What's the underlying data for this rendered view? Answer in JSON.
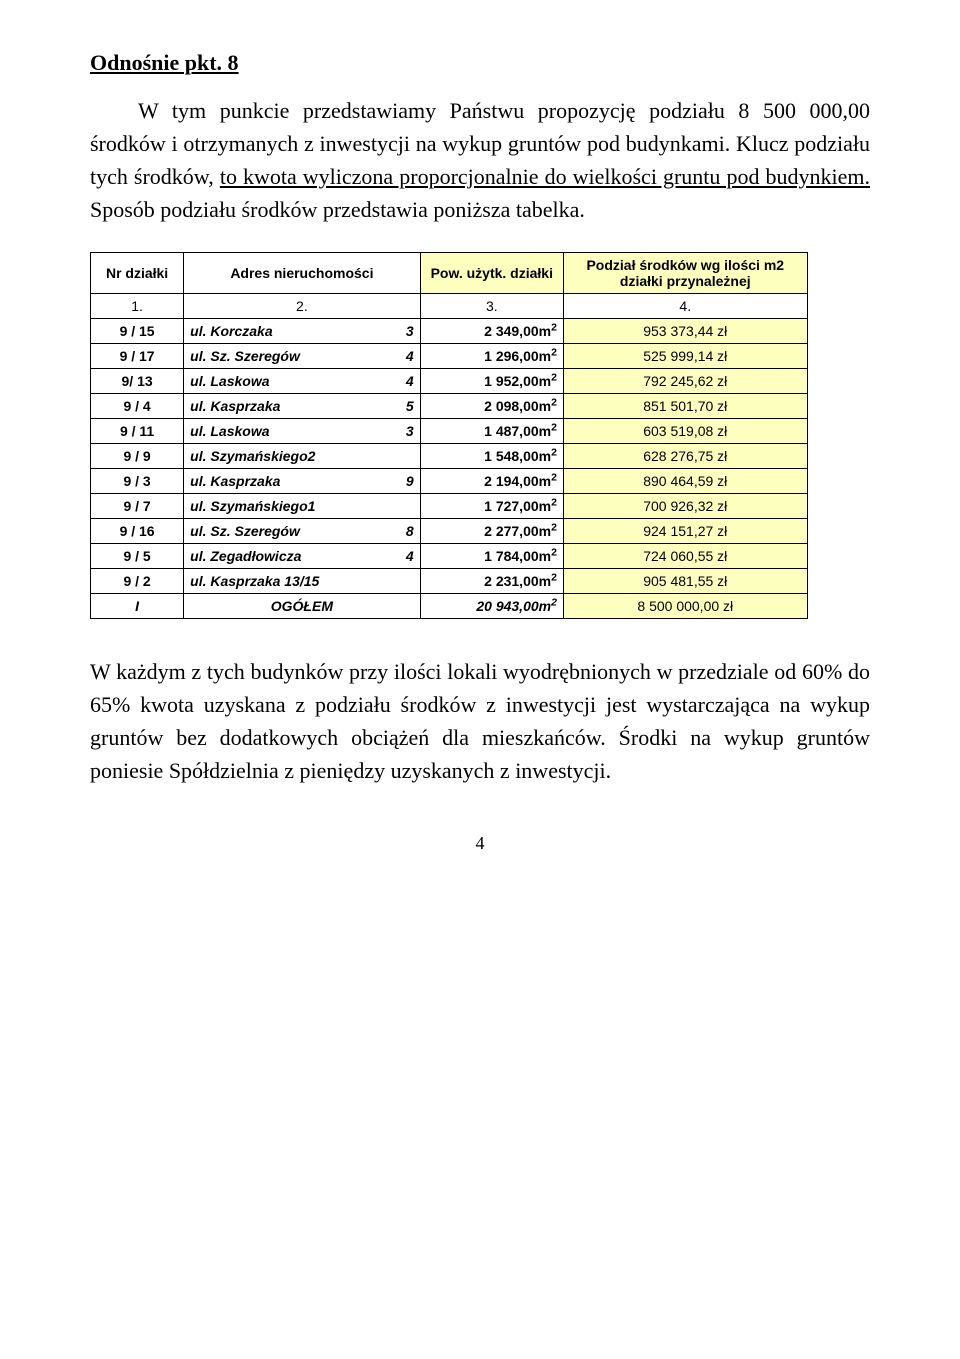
{
  "heading": "Odnośnie pkt. 8",
  "para1_pre": "W tym punkcie przedstawiamy Państwu propozycję podziału 8 500 000,00 środków i otrzymanych z inwestycji na wykup gruntów pod budynkami. Klucz podziału tych środków, ",
  "para1_u": "to kwota wyliczona proporcjonalnie do wielkości gruntu pod budynkiem.",
  "para1_post": " Sposób podziału środków przedstawia poniższa tabelka.",
  "table": {
    "headers": {
      "c1": "Nr działki",
      "c2": "Adres  nieruchomości",
      "c3": "Pow. użytk. działki",
      "c4": "Podział środków wg ilości m2 działki przynależnej"
    },
    "numrow": [
      "1.",
      "2.",
      "3.",
      "4."
    ],
    "rows": [
      {
        "nr": "9 / 15",
        "addr_name": "ul. Korczaka",
        "addr_num": "3",
        "pow": "2 349,00m",
        "sup": "2",
        "val": "953 373,44 zł"
      },
      {
        "nr": "9 / 17",
        "addr_name": "ul. Sz. Szeregów",
        "addr_num": "4",
        "pow": "1 296,00m",
        "sup": "2",
        "val": "525 999,14 zł"
      },
      {
        "nr": "9/ 13",
        "addr_name": "ul. Laskowa",
        "addr_num": "4",
        "pow": "1 952,00m",
        "sup": "2",
        "val": "792 245,62 zł"
      },
      {
        "nr": "9 /  4",
        "addr_name": "ul. Kasprzaka",
        "addr_num": "5",
        "pow": "2 098,00m",
        "sup": "2",
        "val": "851 501,70 zł"
      },
      {
        "nr": "9 / 11",
        "addr_name": "ul. Laskowa",
        "addr_num": "3",
        "pow": "1 487,00m",
        "sup": "2",
        "val": "603 519,08 zł"
      },
      {
        "nr": "9 /  9",
        "addr_name": "ul. Szymańskiego2",
        "addr_num": "",
        "pow": "1 548,00m",
        "sup": "2",
        "val": "628 276,75 zł"
      },
      {
        "nr": "9 /  3",
        "addr_name": "ul. Kasprzaka",
        "addr_num": "9",
        "pow": "2 194,00m",
        "sup": "2",
        "val": "890 464,59 zł"
      },
      {
        "nr": "9 /  7",
        "addr_name": "ul. Szymańskiego1",
        "addr_num": "",
        "pow": "1 727,00m",
        "sup": "2",
        "val": "700 926,32 zł"
      },
      {
        "nr": "9 / 16",
        "addr_name": "ul. Sz. Szeregów",
        "addr_num": "8",
        "pow": "2 277,00m",
        "sup": "2",
        "val": "924 151,27 zł"
      },
      {
        "nr": "9 /  5",
        "addr_name": "ul. Zegadłowicza",
        "addr_num": "4",
        "pow": "1 784,00m",
        "sup": "2",
        "val": "724 060,55 zł"
      },
      {
        "nr": "9 /  2",
        "addr_name": "ul. Kasprzaka 13/15",
        "addr_num": "",
        "pow": "2 231,00m",
        "sup": "2",
        "val": "905 481,55 zł"
      }
    ],
    "total": {
      "nr": "I",
      "addr": "OGÓŁEM",
      "pow": "20 943,00m",
      "sup": "2",
      "val": "8 500 000,00 zł"
    },
    "header_bg": "#fdffbf",
    "col4_bg": "#fdffbf"
  },
  "para2": "W każdym z tych budynków przy ilości lokali wyodrębnionych w przedziale od 60% do 65% kwota uzyskana z podziału środków z inwestycji jest wystarczająca na wykup gruntów bez dodatkowych obciążeń dla mieszkańców. Środki na wykup gruntów  poniesie Spółdzielnia z pieniędzy uzyskanych z inwestycji.",
  "pagenum": "4"
}
